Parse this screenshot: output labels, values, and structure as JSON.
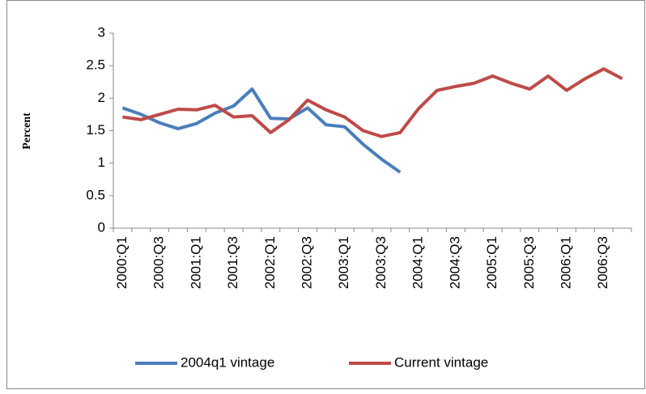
{
  "chart_data": {
    "type": "line",
    "y_label": "Percent",
    "categories": [
      "2000:Q1",
      null,
      "2000:Q3",
      null,
      "2001:Q1",
      null,
      "2001:Q3",
      null,
      "2002:Q1",
      null,
      "2002:Q3",
      null,
      "2003:Q1",
      null,
      "2003:Q3",
      null,
      "2004:Q1",
      null,
      "2004:Q3",
      null,
      "2005:Q1",
      null,
      "2005:Q3",
      null,
      "2006:Q1",
      null,
      "2006:Q3",
      null
    ],
    "series": [
      {
        "name": "2004q1 vintage",
        "color": "#4a7ebb",
        "values": [
          1.85,
          1.75,
          1.62,
          1.53,
          1.61,
          1.77,
          1.88,
          2.14,
          1.69,
          1.68,
          1.85,
          1.59,
          1.56,
          1.29,
          1.06,
          0.86,
          null,
          null,
          null,
          null,
          null,
          null,
          null,
          null,
          null,
          null,
          null,
          null
        ]
      },
      {
        "name": "Current vintage",
        "color": "#be4b48",
        "values": [
          1.71,
          1.67,
          1.75,
          1.83,
          1.82,
          1.89,
          1.71,
          1.73,
          1.47,
          1.67,
          1.97,
          1.82,
          1.71,
          1.5,
          1.41,
          1.47,
          1.84,
          2.12,
          2.18,
          2.23,
          2.34,
          2.23,
          2.14,
          2.34,
          2.12,
          2.3,
          2.45,
          2.3
        ]
      }
    ],
    "ylim": [
      0,
      3
    ],
    "yticks": [
      0,
      0.5,
      1,
      1.5,
      2,
      2.5,
      3
    ],
    "grid": false,
    "legend": "bottom"
  }
}
